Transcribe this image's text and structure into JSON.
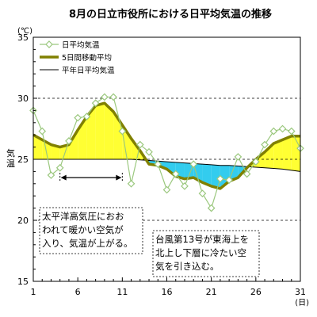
{
  "chart_data": {
    "type": "line",
    "title": "8月の日立市役所における日平均気温の推移",
    "y_unit": "(℃)",
    "ylabel": "気温",
    "x_unit": "(日)",
    "ylim": [
      15,
      35
    ],
    "xlim": [
      1,
      31
    ],
    "y_ticks": [
      15,
      20,
      25,
      30,
      35
    ],
    "x_ticks": [
      1,
      6,
      11,
      16,
      21,
      26,
      31
    ],
    "y_gridlines": [
      20,
      25,
      30
    ],
    "x": [
      1,
      2,
      3,
      4,
      5,
      6,
      7,
      8,
      9,
      10,
      11,
      12,
      13,
      14,
      15,
      16,
      17,
      18,
      19,
      20,
      21,
      22,
      23,
      24,
      25,
      26,
      27,
      28,
      29,
      30,
      31
    ],
    "series": [
      {
        "name": "日平均気温",
        "color": "#9bc87e",
        "marker": "diamond",
        "values": [
          29.0,
          27.3,
          23.7,
          24.3,
          26.5,
          28.4,
          28.5,
          29.6,
          30.1,
          30.1,
          27.3,
          23.0,
          26.2,
          25.6,
          24.6,
          22.5,
          23.8,
          22.8,
          24.6,
          22.2,
          21.0,
          23.4,
          23.3,
          25.2,
          23.8,
          24.8,
          26.2,
          27.3,
          27.5,
          27.3,
          25.9
        ]
      },
      {
        "name": "5日間移動平均",
        "color": "#808000",
        "values": [
          27.0,
          26.6,
          26.2,
          26.0,
          26.2,
          27.4,
          28.5,
          29.4,
          29.6,
          28.9,
          27.8,
          26.7,
          25.7,
          24.6,
          24.5,
          24.2,
          23.6,
          23.4,
          23.5,
          23.1,
          22.8,
          22.6,
          23.2,
          23.5,
          24.3,
          25.0,
          25.6,
          26.3,
          26.6,
          26.9,
          26.9
        ]
      },
      {
        "name": "平年日平均気温",
        "color": "#000000",
        "values": [
          25.0,
          25.0,
          25.0,
          25.0,
          25.0,
          25.0,
          25.0,
          25.0,
          25.0,
          25.0,
          25.0,
          25.0,
          24.95,
          24.9,
          24.85,
          24.8,
          24.75,
          24.7,
          24.65,
          24.6,
          24.55,
          24.5,
          24.5,
          24.45,
          24.4,
          24.35,
          24.3,
          24.25,
          24.2,
          24.1,
          24.0
        ]
      }
    ],
    "fill_above_color": "#ffff33",
    "fill_below_color": "#33ccee",
    "legend_position": "top-left",
    "annotations": [
      {
        "lines": [
          "太平洋高気圧におお",
          "われて暖かい空気が",
          "入り、気温が上がる。"
        ],
        "arrow_from_day": 4,
        "arrow_to_day": 11,
        "arrow_y": 23.5
      },
      {
        "lines": [
          "台風第13号が東海上を",
          "北上し下層に冷たい空",
          "気を引き込む。"
        ],
        "arrow_from_day": 15,
        "arrow_to_day": 24,
        "arrow_y": 17.8
      }
    ]
  }
}
